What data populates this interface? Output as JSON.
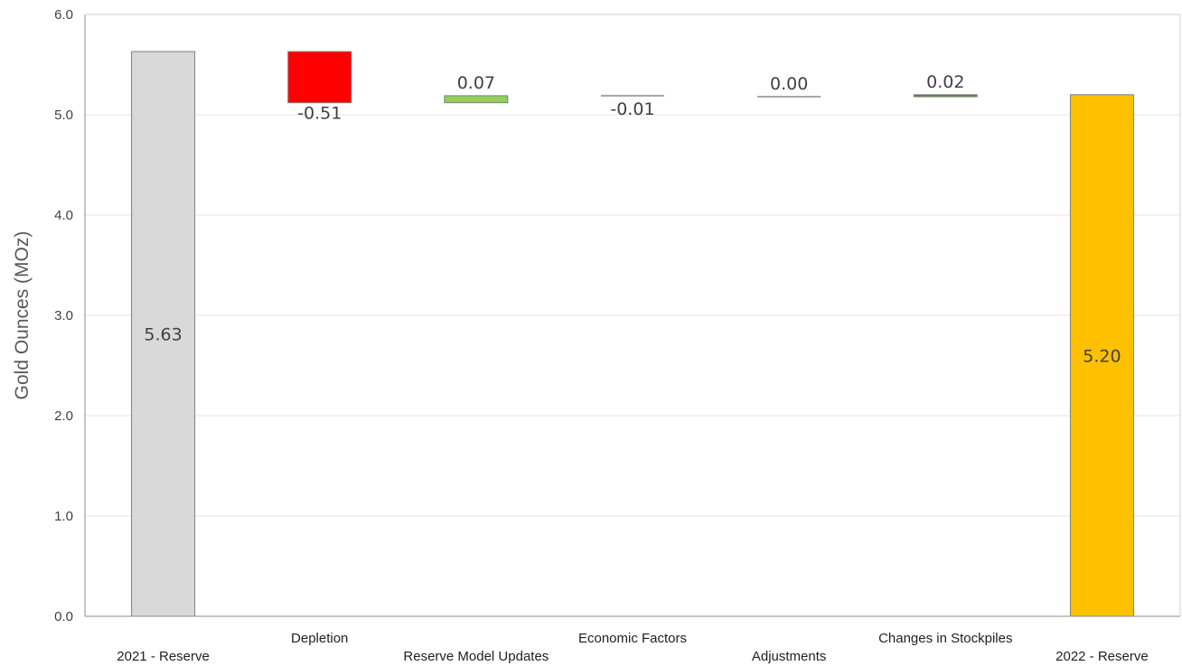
{
  "chart_data": {
    "type": "waterfall",
    "title": "",
    "xlabel": "",
    "ylabel": "Gold Ounces (MOz)",
    "ylim": [
      0,
      6
    ],
    "y_ticks": [
      "0.0",
      "1.0",
      "2.0",
      "3.0",
      "4.0",
      "5.0",
      "6.0"
    ],
    "grid": true,
    "legend": "none",
    "categories": [
      "2021 - Reserve",
      "Depletion",
      "Reserve Model Updates",
      "Economic Factors",
      "Adjustments",
      "Changes in Stockpiles",
      "2022 - Reserve"
    ],
    "bars": [
      {
        "kind": "total",
        "start": 0,
        "end": 5.63,
        "label": "5.63",
        "color": "#d9d9d9"
      },
      {
        "kind": "delta",
        "start": 5.63,
        "end": 5.12,
        "label": "-0.51",
        "color": "#ff0000"
      },
      {
        "kind": "delta",
        "start": 5.12,
        "end": 5.19,
        "label": "0.07",
        "color": "#92d050"
      },
      {
        "kind": "delta",
        "start": 5.19,
        "end": 5.18,
        "label": "-0.01",
        "color": "#a6a6a6"
      },
      {
        "kind": "delta",
        "start": 5.18,
        "end": 5.18,
        "label": "0.00",
        "color": "#a6a6a6"
      },
      {
        "kind": "delta",
        "start": 5.18,
        "end": 5.2,
        "label": "0.02",
        "color": "#548235"
      },
      {
        "kind": "total",
        "start": 0,
        "end": 5.2,
        "label": "5.20",
        "color": "#ffc000"
      }
    ]
  }
}
